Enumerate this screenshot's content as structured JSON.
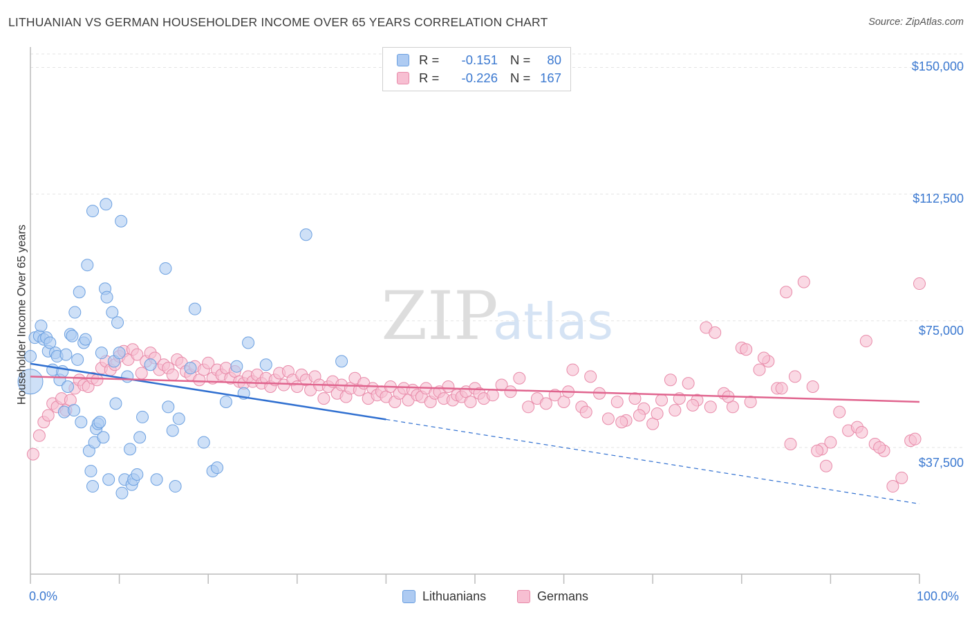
{
  "title": "LITHUANIAN VS GERMAN HOUSEHOLDER INCOME OVER 65 YEARS CORRELATION CHART",
  "source": "Source: ZipAtlas.com",
  "watermark": {
    "zip": "ZIP",
    "atlas": "atlas"
  },
  "legend": {
    "rows": [
      {
        "r_label": "R =",
        "r_value": "-0.151",
        "n_label": "N =",
        "n_value": "80"
      },
      {
        "r_label": "R =",
        "r_value": "-0.226",
        "n_label": "N =",
        "n_value": "167"
      }
    ]
  },
  "bottom_legend": {
    "series1": "Lithuanians",
    "series2": "Germans"
  },
  "colors": {
    "blue_fill": "#aecbf2",
    "blue_stroke": "#6a9fe0",
    "blue_line": "#2f6fd0",
    "pink_fill": "#f7bfd2",
    "pink_stroke": "#e889a8",
    "pink_line": "#e0648e",
    "tick_text": "#3a78d0",
    "grid": "#e3e3e3"
  },
  "chart_data": {
    "type": "scatter",
    "title": "LITHUANIAN VS GERMAN HOUSEHOLDER INCOME OVER 65 YEARS CORRELATION CHART",
    "xlabel": "",
    "ylabel": "Householder Income Over 65 years",
    "x_tick_labels": [
      "0.0%",
      "100.0%"
    ],
    "y_tick_labels": [
      "$150,000",
      "$112,500",
      "$75,000",
      "$37,500"
    ],
    "y_tick_values": [
      150000,
      112500,
      75000,
      37500
    ],
    "xlim": [
      0,
      100
    ],
    "ylim": [
      0,
      154000
    ],
    "grid": true,
    "legend_position": "top-center",
    "series": [
      {
        "name": "Lithuanians",
        "color": "#6a9fe0",
        "trend": {
          "x_start": 0,
          "y_start": 62300,
          "x_end": 40,
          "y_end": 45800,
          "dashed_to_x": 100,
          "dashed_to_y": 20800
        },
        "points": [
          [
            0,
            57000
          ],
          [
            0,
            64500
          ],
          [
            0.5,
            70000
          ],
          [
            1,
            70500
          ],
          [
            1.2,
            73500
          ],
          [
            1.5,
            69500
          ],
          [
            1.8,
            70000
          ],
          [
            2,
            66000
          ],
          [
            2.2,
            68500
          ],
          [
            2.5,
            60500
          ],
          [
            2.8,
            65500
          ],
          [
            3,
            64500
          ],
          [
            3.3,
            57500
          ],
          [
            3.6,
            60000
          ],
          [
            3.8,
            48000
          ],
          [
            4,
            65000
          ],
          [
            4.2,
            55500
          ],
          [
            4.5,
            71000
          ],
          [
            4.7,
            70500
          ],
          [
            4.9,
            48500
          ],
          [
            5,
            77500
          ],
          [
            5.3,
            63500
          ],
          [
            5.5,
            83500
          ],
          [
            5.7,
            45000
          ],
          [
            6,
            68500
          ],
          [
            6.2,
            69500
          ],
          [
            6.4,
            91500
          ],
          [
            6.6,
            36500
          ],
          [
            6.8,
            30500
          ],
          [
            7,
            26000
          ],
          [
            7.2,
            39000
          ],
          [
            7.4,
            43000
          ],
          [
            7.6,
            44500
          ],
          [
            7.8,
            45000
          ],
          [
            8,
            65500
          ],
          [
            8.2,
            40500
          ],
          [
            8.4,
            84500
          ],
          [
            8.6,
            82000
          ],
          [
            8.8,
            28000
          ],
          [
            9.2,
            77500
          ],
          [
            9.4,
            63000
          ],
          [
            9.6,
            50500
          ],
          [
            9.8,
            74500
          ],
          [
            10,
            65500
          ],
          [
            10.3,
            24000
          ],
          [
            10.6,
            28000
          ],
          [
            10.9,
            58500
          ],
          [
            11.2,
            37000
          ],
          [
            11.4,
            26500
          ],
          [
            11.6,
            28000
          ],
          [
            12,
            29500
          ],
          [
            12.3,
            40500
          ],
          [
            12.6,
            46500
          ],
          [
            13.5,
            62000
          ],
          [
            14.2,
            28000
          ],
          [
            15.2,
            90500
          ],
          [
            15.5,
            49500
          ],
          [
            16,
            42500
          ],
          [
            16.3,
            26000
          ],
          [
            16.7,
            46000
          ],
          [
            18,
            61000
          ],
          [
            18.5,
            78500
          ],
          [
            19.5,
            39000
          ],
          [
            20.5,
            30500
          ],
          [
            21,
            31500
          ],
          [
            22,
            51000
          ],
          [
            23.2,
            61500
          ],
          [
            24,
            53500
          ],
          [
            24.5,
            68500
          ],
          [
            26.5,
            62000
          ],
          [
            31,
            100500
          ],
          [
            35,
            63000
          ],
          [
            7,
            107500
          ],
          [
            8.5,
            109500
          ],
          [
            10.2,
            104500
          ]
        ]
      },
      {
        "name": "Germans",
        "color": "#e889a8",
        "trend": {
          "x_start": 0,
          "y_start": 58500,
          "x_end": 100,
          "y_end": 51000
        },
        "points": [
          [
            0.3,
            35500
          ],
          [
            1,
            41000
          ],
          [
            1.5,
            45000
          ],
          [
            2,
            47000
          ],
          [
            2.5,
            50500
          ],
          [
            3,
            49500
          ],
          [
            3.5,
            52000
          ],
          [
            4,
            48500
          ],
          [
            4.5,
            51500
          ],
          [
            5,
            55000
          ],
          [
            5.5,
            57500
          ],
          [
            6,
            56000
          ],
          [
            6.5,
            55500
          ],
          [
            7,
            58000
          ],
          [
            7.5,
            57500
          ],
          [
            8,
            61000
          ],
          [
            8.5,
            63000
          ],
          [
            9,
            60500
          ],
          [
            9.5,
            62000
          ],
          [
            10,
            64500
          ],
          [
            10.5,
            66000
          ],
          [
            11,
            63500
          ],
          [
            11.5,
            66500
          ],
          [
            12,
            65000
          ],
          [
            12.5,
            59500
          ],
          [
            13,
            63000
          ],
          [
            13.5,
            65500
          ],
          [
            14,
            64000
          ],
          [
            14.5,
            60500
          ],
          [
            15,
            62000
          ],
          [
            15.5,
            61000
          ],
          [
            16,
            59000
          ],
          [
            16.5,
            63500
          ],
          [
            17,
            62500
          ],
          [
            17.5,
            60000
          ],
          [
            18,
            59000
          ],
          [
            18.5,
            61500
          ],
          [
            19,
            57500
          ],
          [
            19.5,
            60500
          ],
          [
            20,
            62500
          ],
          [
            20.5,
            58000
          ],
          [
            21,
            60500
          ],
          [
            21.5,
            59000
          ],
          [
            22,
            61000
          ],
          [
            22.5,
            58000
          ],
          [
            23,
            60000
          ],
          [
            23.5,
            57000
          ],
          [
            24,
            56500
          ],
          [
            24.5,
            58500
          ],
          [
            25,
            57000
          ],
          [
            25.5,
            59000
          ],
          [
            26,
            56500
          ],
          [
            26.5,
            58000
          ],
          [
            27,
            55500
          ],
          [
            27.5,
            57500
          ],
          [
            28,
            59500
          ],
          [
            28.5,
            56000
          ],
          [
            29,
            60000
          ],
          [
            29.5,
            57500
          ],
          [
            30,
            55500
          ],
          [
            30.5,
            59000
          ],
          [
            31,
            57500
          ],
          [
            31.5,
            54500
          ],
          [
            32,
            58500
          ],
          [
            32.5,
            56000
          ],
          [
            33,
            52000
          ],
          [
            33.5,
            55500
          ],
          [
            34,
            57000
          ],
          [
            34.5,
            53500
          ],
          [
            35,
            56000
          ],
          [
            35.5,
            52500
          ],
          [
            36,
            55000
          ],
          [
            36.5,
            58000
          ],
          [
            37,
            54500
          ],
          [
            37.5,
            56500
          ],
          [
            38,
            52000
          ],
          [
            38.5,
            55000
          ],
          [
            39,
            53000
          ],
          [
            39.5,
            54000
          ],
          [
            40,
            52500
          ],
          [
            40.5,
            55500
          ],
          [
            41,
            51000
          ],
          [
            41.5,
            53500
          ],
          [
            42,
            55000
          ],
          [
            42.5,
            51500
          ],
          [
            43,
            54500
          ],
          [
            43.5,
            53000
          ],
          [
            44,
            52500
          ],
          [
            44.5,
            55000
          ],
          [
            45,
            51000
          ],
          [
            45.5,
            53500
          ],
          [
            46,
            54000
          ],
          [
            46.5,
            52000
          ],
          [
            47,
            55500
          ],
          [
            47.5,
            51500
          ],
          [
            48,
            53000
          ],
          [
            48.5,
            52500
          ],
          [
            49,
            54000
          ],
          [
            49.5,
            51000
          ],
          [
            50,
            55000
          ],
          [
            50.5,
            53500
          ],
          [
            51,
            52000
          ],
          [
            52,
            53000
          ],
          [
            53,
            56000
          ],
          [
            54,
            54000
          ],
          [
            55,
            58000
          ],
          [
            56,
            49500
          ],
          [
            57,
            52000
          ],
          [
            58,
            50500
          ],
          [
            59,
            53000
          ],
          [
            60,
            51000
          ],
          [
            61,
            60500
          ],
          [
            62,
            49500
          ],
          [
            63,
            58500
          ],
          [
            64,
            53500
          ],
          [
            65,
            46000
          ],
          [
            66,
            51000
          ],
          [
            67,
            45500
          ],
          [
            68,
            52000
          ],
          [
            69,
            49000
          ],
          [
            70,
            44500
          ],
          [
            71,
            51500
          ],
          [
            72,
            57500
          ],
          [
            73,
            52000
          ],
          [
            74,
            56500
          ],
          [
            75,
            51500
          ],
          [
            76,
            73000
          ],
          [
            77,
            71500
          ],
          [
            78,
            53500
          ],
          [
            79,
            49500
          ],
          [
            80,
            67000
          ],
          [
            81,
            51000
          ],
          [
            82,
            60500
          ],
          [
            83,
            63000
          ],
          [
            84,
            55000
          ],
          [
            85,
            83500
          ],
          [
            86,
            58500
          ],
          [
            87,
            86500
          ],
          [
            88,
            55500
          ],
          [
            89,
            37000
          ],
          [
            89.5,
            32000
          ],
          [
            90,
            39000
          ],
          [
            91,
            48000
          ],
          [
            92,
            42500
          ],
          [
            93,
            43500
          ],
          [
            94,
            69000
          ],
          [
            95,
            38500
          ],
          [
            96,
            36500
          ],
          [
            97,
            26000
          ],
          [
            98,
            28500
          ],
          [
            99,
            39500
          ],
          [
            100,
            86000
          ],
          [
            60.5,
            54000
          ],
          [
            62.5,
            48000
          ],
          [
            66.5,
            45000
          ],
          [
            68.5,
            47000
          ],
          [
            70.5,
            47500
          ],
          [
            72.5,
            48500
          ],
          [
            74.5,
            50000
          ],
          [
            76.5,
            49500
          ],
          [
            78.5,
            52500
          ],
          [
            80.5,
            66500
          ],
          [
            82.5,
            64000
          ],
          [
            84.5,
            55000
          ],
          [
            85.5,
            38500
          ],
          [
            88.5,
            36500
          ],
          [
            95.5,
            37500
          ],
          [
            99.5,
            40000
          ],
          [
            93.5,
            42000
          ]
        ]
      }
    ]
  }
}
